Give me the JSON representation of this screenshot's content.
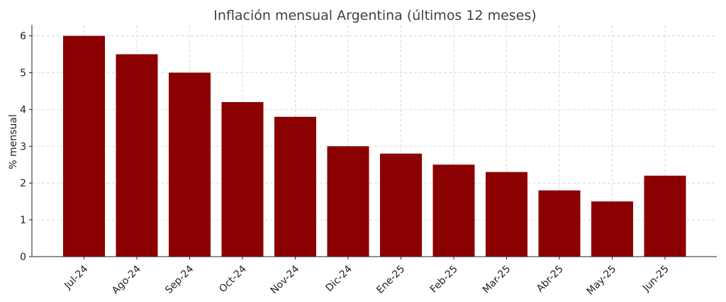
{
  "chart_data": {
    "type": "bar",
    "title": "Inflación mensual Argentina (últimos 12 meses)",
    "xlabel": "",
    "ylabel": "% mensual",
    "categories": [
      "Jul-24",
      "Ago-24",
      "Sep-24",
      "Oct-24",
      "Nov-24",
      "Dic-24",
      "Ene-25",
      "Feb-25",
      "Mar-25",
      "Abr-25",
      "May-25",
      "Jun-25"
    ],
    "values": [
      6.0,
      5.5,
      5.0,
      4.2,
      3.8,
      3.0,
      2.8,
      2.5,
      2.3,
      1.8,
      1.5,
      2.2
    ],
    "ylim": [
      0,
      6.3
    ],
    "yticks": [
      "0",
      "1",
      "2",
      "3",
      "4",
      "5",
      "6"
    ],
    "grid": true,
    "bar_color": "#8b0000"
  }
}
